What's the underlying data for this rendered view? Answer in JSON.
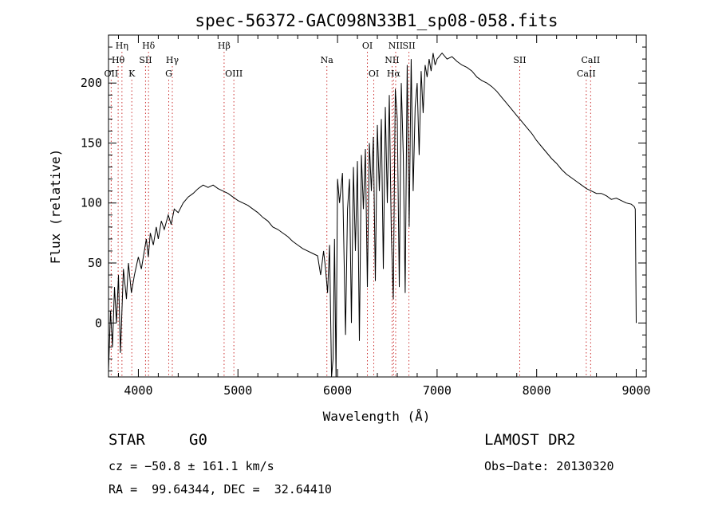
{
  "chart_data": {
    "type": "line",
    "title": "spec-56372-GAC098N33B1_sp08-058.fits",
    "xlabel": "Wavelength (Å)",
    "ylabel": "Flux (relative)",
    "xlim": [
      3700,
      9100
    ],
    "ylim": [
      -45,
      240
    ],
    "xticks": [
      4000,
      5000,
      6000,
      7000,
      8000,
      9000
    ],
    "yticks": [
      0,
      50,
      100,
      150,
      200
    ],
    "grid": false,
    "series": [
      {
        "x": [
          3700,
          3720,
          3740,
          3760,
          3780,
          3800,
          3820,
          3850,
          3880,
          3900,
          3930,
          3960,
          4000,
          4030,
          4060,
          4080,
          4100,
          4120,
          4150,
          4180,
          4200,
          4230,
          4260,
          4300,
          4330,
          4360,
          4400,
          4450,
          4500,
          4550,
          4600,
          4650,
          4700,
          4750,
          4800,
          4850,
          4900,
          4950,
          5000,
          5050,
          5100,
          5150,
          5200,
          5250,
          5300,
          5350,
          5400,
          5450,
          5500,
          5550,
          5600,
          5650,
          5700,
          5750,
          5800,
          5830,
          5860,
          5880,
          5900,
          5920,
          5940,
          5955,
          5970,
          5985,
          6000,
          6020,
          6050,
          6080,
          6100,
          6120,
          6140,
          6160,
          6180,
          6200,
          6220,
          6240,
          6260,
          6280,
          6300,
          6320,
          6340,
          6360,
          6380,
          6400,
          6420,
          6440,
          6460,
          6480,
          6500,
          6520,
          6540,
          6560,
          6580,
          6600,
          6620,
          6640,
          6660,
          6680,
          6700,
          6720,
          6740,
          6760,
          6780,
          6800,
          6820,
          6840,
          6860,
          6880,
          6900,
          6920,
          6940,
          6960,
          6980,
          7000,
          7020,
          7050,
          7100,
          7150,
          7200,
          7250,
          7300,
          7350,
          7400,
          7450,
          7500,
          7550,
          7600,
          7650,
          7700,
          7750,
          7800,
          7850,
          7900,
          7950,
          8000,
          8050,
          8100,
          8150,
          8200,
          8250,
          8300,
          8350,
          8400,
          8450,
          8500,
          8550,
          8600,
          8650,
          8700,
          8750,
          8800,
          8850,
          8900,
          8950,
          8980,
          8990,
          8995,
          9000
        ],
        "y": [
          -40,
          10,
          -20,
          30,
          0,
          40,
          -25,
          45,
          20,
          50,
          25,
          40,
          55,
          45,
          60,
          70,
          55,
          75,
          65,
          80,
          70,
          85,
          78,
          90,
          82,
          95,
          92,
          100,
          105,
          108,
          112,
          115,
          113,
          115,
          112,
          110,
          108,
          105,
          102,
          100,
          98,
          95,
          92,
          88,
          85,
          80,
          78,
          75,
          72,
          68,
          65,
          62,
          60,
          58,
          56,
          40,
          60,
          45,
          25,
          65,
          -45,
          -30,
          70,
          -45,
          120,
          100,
          125,
          -10,
          95,
          120,
          0,
          130,
          60,
          135,
          -15,
          140,
          95,
          145,
          30,
          150,
          110,
          155,
          35,
          165,
          110,
          170,
          45,
          180,
          100,
          190,
          75,
          20,
          195,
          170,
          30,
          200,
          140,
          25,
          215,
          80,
          220,
          110,
          180,
          200,
          140,
          210,
          175,
          215,
          205,
          220,
          210,
          225,
          215,
          220,
          222,
          225,
          220,
          222,
          218,
          215,
          213,
          210,
          205,
          202,
          200,
          197,
          193,
          188,
          183,
          178,
          173,
          168,
          163,
          158,
          152,
          147,
          142,
          137,
          133,
          128,
          124,
          121,
          118,
          115,
          112,
          110,
          108,
          108,
          106,
          103,
          104,
          102,
          100,
          99,
          97,
          95,
          50,
          0
        ]
      }
    ],
    "lines": [
      {
        "label": "Hη",
        "x": 3835,
        "row": 0
      },
      {
        "label": "Hθ",
        "x": 3797,
        "row": 1
      },
      {
        "label": "OII",
        "x": 3727,
        "row": 2
      },
      {
        "label": "Hδ",
        "x": 4102,
        "row": 0
      },
      {
        "label": "SII",
        "x": 4072,
        "row": 1
      },
      {
        "label": "K",
        "x": 3934,
        "row": 2
      },
      {
        "label": "Hγ",
        "x": 4341,
        "row": 1
      },
      {
        "label": "G",
        "x": 4305,
        "row": 2
      },
      {
        "label": "Hβ",
        "x": 4861,
        "row": 0
      },
      {
        "label": "OIII",
        "x": 4959,
        "row": 2
      },
      {
        "label": "Na",
        "x": 5893,
        "row": 1
      },
      {
        "label": "OI",
        "x": 6300,
        "row": 0
      },
      {
        "label": "OI",
        "x": 6364,
        "row": 2
      },
      {
        "label": "NII",
        "x": 6584,
        "row": 0
      },
      {
        "label": "SII",
        "x": 6717,
        "row": 0
      },
      {
        "label": "NII",
        "x": 6548,
        "row": 1
      },
      {
        "label": "Hα",
        "x": 6563,
        "row": 2
      },
      {
        "label": "SII",
        "x": 7830,
        "row": 1
      },
      {
        "label": "CaII",
        "x": 8542,
        "row": 1
      },
      {
        "label": "CaII",
        "x": 8498,
        "row": 2
      }
    ]
  },
  "info": {
    "object_type": "STAR",
    "subclass": "G0",
    "release": "LAMOST DR2",
    "cz": "cz = −50.8 ± 161.1 km/s",
    "obs_date": "Obs−Date: 20130320",
    "coords": "RA =  99.64344, DEC =  32.64410"
  }
}
